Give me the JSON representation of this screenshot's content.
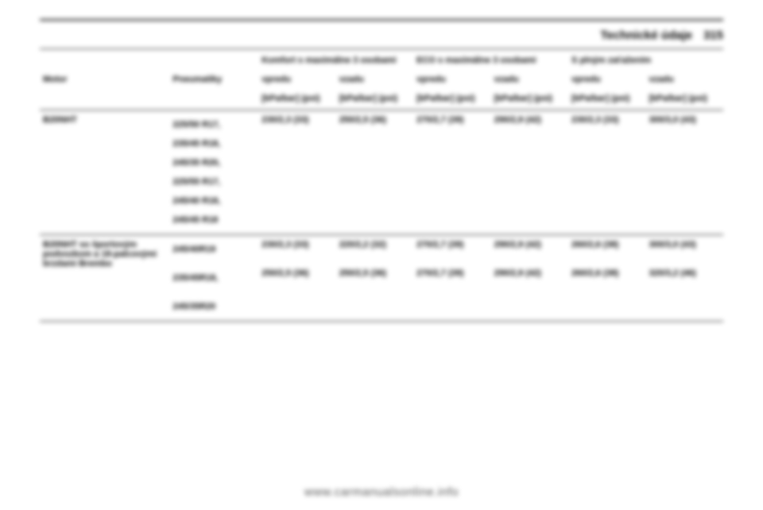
{
  "header": {
    "section_title": "Technické údaje",
    "page_number": "315"
  },
  "table": {
    "group_headers": {
      "comfort": "Komfort s maximálne 3 osobami",
      "eco": "ECO s maximálne 3 osobami",
      "full": "S plným zaťažením"
    },
    "col_labels": {
      "motor": "Motor",
      "tyres": "Pneumatiky",
      "front": "vpredu",
      "rear": "vzadu"
    },
    "unit_label": "[kPa/bar] (psi)",
    "rows": [
      {
        "motor": "B20NHT",
        "tyres": [
          "225/50 R17,",
          "235/45 R18,",
          "245/35 R20,",
          "225/55 R17,",
          "245/40 R18,",
          "245/45 R18"
        ],
        "vals": [
          "230/2,3 (33)",
          "250/2,5 (36)",
          "270/2,7 (39)",
          "290/2,9 (42)",
          "230/2,3 (33)",
          "300/3,0 (43)"
        ]
      },
      {
        "motor": "B20NHT so športovým podvozkom a 18-palcovými brzdami Brembo",
        "tyres": [
          "245/40R19"
        ],
        "vals": [
          "230/2,3 (33)",
          "220/2,2 (32)",
          "270/2,7 (39)",
          "290/2,9 (42)",
          "260/2,6 (38)",
          "300/3,0 (43)"
        ]
      },
      {
        "motor": "",
        "tyres": [
          "235/45R18,"
        ],
        "vals": [
          "250/2,5 (36)",
          "250/2,5 (36)",
          "270/2,7 (39)",
          "290/2,9 (42)",
          "260/2,6 (38)",
          "320/3,2 (46)"
        ]
      },
      {
        "motor": "",
        "tyres": [
          "245/35R20"
        ],
        "vals": [
          "",
          "",
          "",
          "",
          "",
          ""
        ]
      }
    ]
  },
  "footer": {
    "url": "www.carmanualsonline.info"
  }
}
